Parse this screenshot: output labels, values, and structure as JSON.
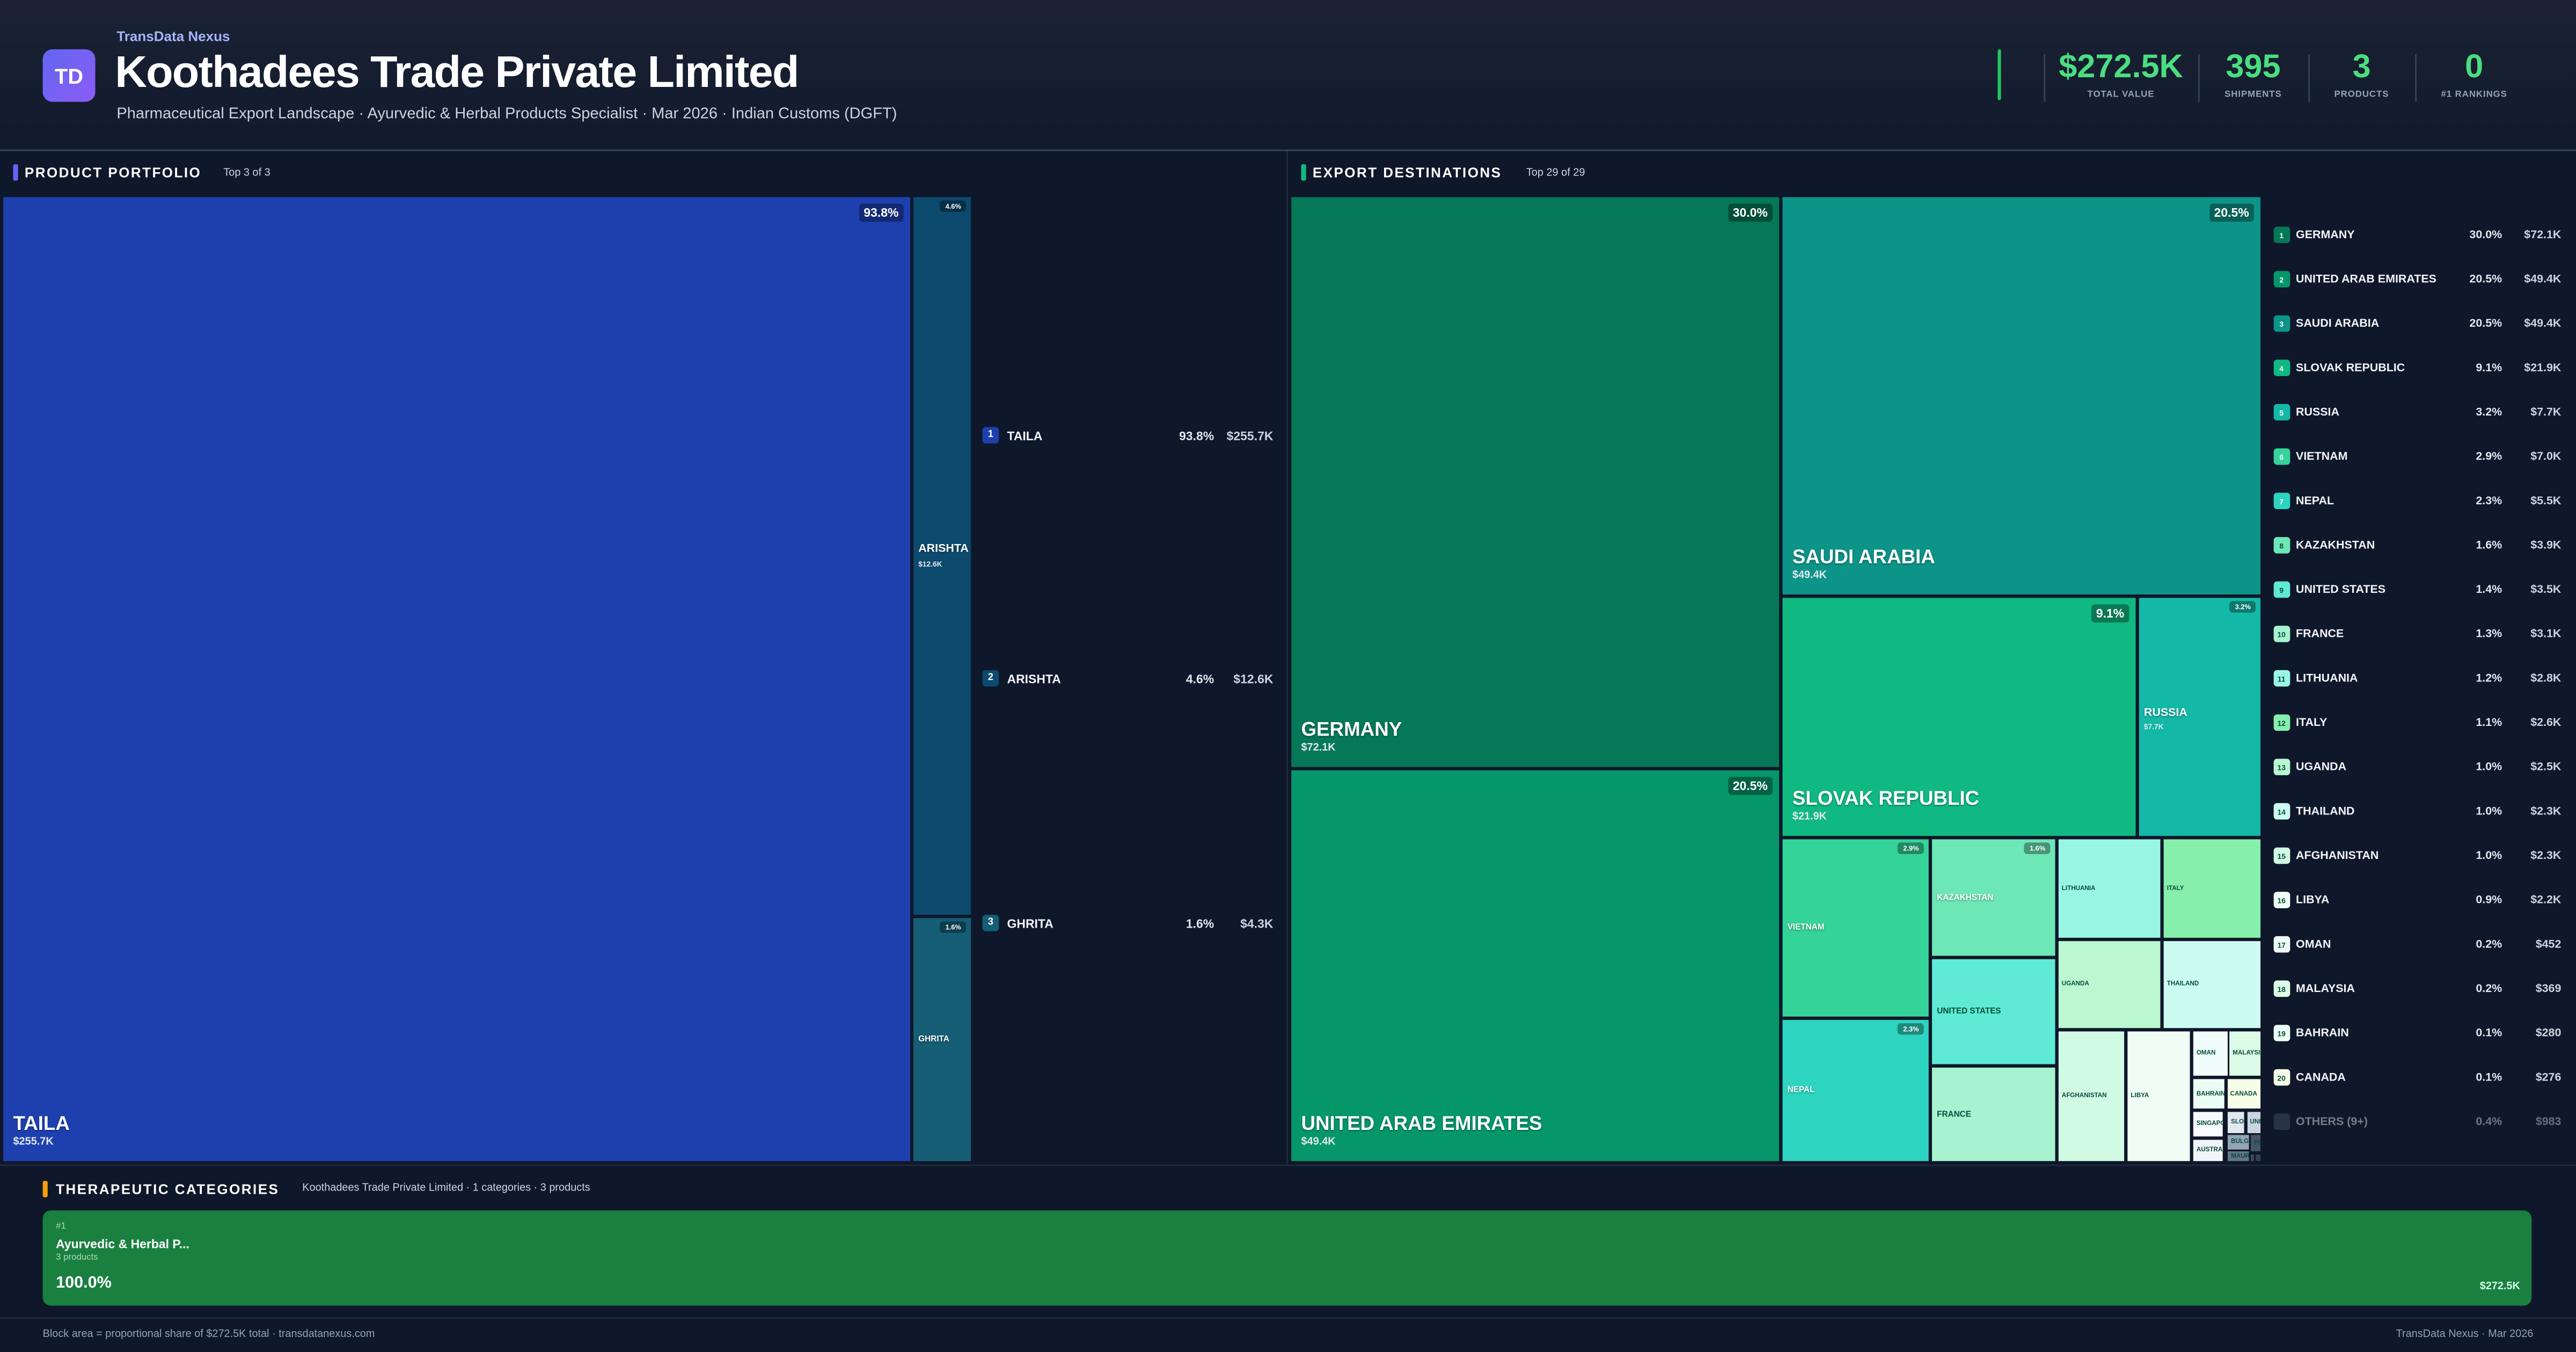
{
  "header": {
    "logo_text": "TD",
    "brand": "TransData Nexus",
    "title": "Koothadees Trade Private Limited",
    "subtitle": "Pharmaceutical Export Landscape · Ayurvedic & Herbal Products Specialist · Mar 2026 · Indian Customs (DGFT)",
    "stats": [
      {
        "value": "$272.5K",
        "label": "TOTAL VALUE"
      },
      {
        "value": "395",
        "label": "SHIPMENTS"
      },
      {
        "value": "3",
        "label": "PRODUCTS"
      },
      {
        "value": "0",
        "label": "#1 RANKINGS"
      }
    ],
    "accent_color": "#4ade80"
  },
  "products": {
    "title": "PRODUCT PORTFOLIO",
    "subtitle": "Top 3 of 3",
    "accent_color": "#6366f1"
  },
  "destinations": {
    "title": "EXPORT DESTINATIONS",
    "subtitle": "Top 29 of 29",
    "accent_color": "#10b981"
  },
  "categories": {
    "title": "THERAPEUTIC CATEGORIES",
    "subtitle": "Koothadees Trade Private Limited · 1 categories · 3 products",
    "accent_color": "#f59e0b",
    "items": [
      {
        "rank": "#1",
        "name": "Ayurvedic & Herbal P...",
        "count": "3 products",
        "share": "100.0%",
        "value": "$272.5K",
        "color": "#1a8040"
      }
    ]
  },
  "footer": {
    "left": "Block area = proportional share of $272.5K total · transdatanexus.com",
    "right": "TransData Nexus · Mar 2026"
  },
  "chart_data": [
    {
      "type": "treemap",
      "title": "PRODUCT PORTFOLIO",
      "items": [
        {
          "rank": "1",
          "name": "TAILA",
          "share": "93.8%",
          "value": "$255.7K",
          "color": "#1e40af"
        },
        {
          "rank": "2",
          "name": "ARISHTA",
          "share": "4.6%",
          "value": "$12.6K",
          "color": "#0c4a6e"
        },
        {
          "rank": "3",
          "name": "GHRITA",
          "share": "1.6%",
          "value": "$4.3K",
          "color": "#155e75"
        }
      ]
    },
    {
      "type": "treemap",
      "title": "EXPORT DESTINATIONS",
      "items": [
        {
          "rank": "1",
          "name": "GERMANY",
          "share": "30.0%",
          "value": "$72.1K",
          "color": "#047857"
        },
        {
          "rank": "2",
          "name": "UNITED ARAB EMIRATES",
          "share": "20.5%",
          "value": "$49.4K",
          "color": "#059669"
        },
        {
          "rank": "3",
          "name": "SAUDI ARABIA",
          "share": "20.5%",
          "value": "$49.4K",
          "color": "#0d9488"
        },
        {
          "rank": "4",
          "name": "SLOVAK REPUBLIC",
          "share": "9.1%",
          "value": "$21.9K",
          "color": "#10b981"
        },
        {
          "rank": "5",
          "name": "RUSSIA",
          "share": "3.2%",
          "value": "$7.7K",
          "color": "#14b8a6"
        },
        {
          "rank": "6",
          "name": "VIETNAM",
          "share": "2.9%",
          "value": "$7.0K",
          "color": "#34d399"
        },
        {
          "rank": "7",
          "name": "NEPAL",
          "share": "2.3%",
          "value": "$5.5K",
          "color": "#2dd4bf"
        },
        {
          "rank": "8",
          "name": "KAZAKHSTAN",
          "share": "1.6%",
          "value": "$3.9K",
          "color": "#6ee7b7"
        },
        {
          "rank": "9",
          "name": "UNITED STATES",
          "share": "1.4%",
          "value": "$3.5K",
          "color": "#5eead4"
        },
        {
          "rank": "10",
          "name": "FRANCE",
          "share": "1.3%",
          "value": "$3.1K",
          "color": "#a7f3d0"
        },
        {
          "rank": "11",
          "name": "LITHUANIA",
          "share": "1.2%",
          "value": "$2.8K",
          "color": "#99f6e4"
        },
        {
          "rank": "12",
          "name": "ITALY",
          "share": "1.1%",
          "value": "$2.6K",
          "color": "#86efac"
        },
        {
          "rank": "13",
          "name": "UGANDA",
          "share": "1.0%",
          "value": "$2.5K",
          "color": "#bbf7d0"
        },
        {
          "rank": "14",
          "name": "THAILAND",
          "share": "1.0%",
          "value": "$2.3K",
          "color": "#ccfbf1"
        },
        {
          "rank": "15",
          "name": "AFGHANISTAN",
          "share": "1.0%",
          "value": "$2.3K",
          "color": "#d1fae5"
        },
        {
          "rank": "16",
          "name": "LIBYA",
          "share": "0.9%",
          "value": "$2.2K",
          "color": "#f0fdf4"
        },
        {
          "rank": "17",
          "name": "OMAN",
          "share": "0.2%",
          "value": "$452",
          "color": "#f0fdfa"
        },
        {
          "rank": "18",
          "name": "MALAYSIA",
          "share": "0.2%",
          "value": "$369",
          "color": "#dcfce7"
        },
        {
          "rank": "19",
          "name": "BAHRAIN",
          "share": "0.1%",
          "value": "$280",
          "color": "#ecfdf5"
        },
        {
          "rank": "20",
          "name": "CANADA",
          "share": "0.1%",
          "value": "$276",
          "color": "#f7fee7"
        }
      ],
      "small_cells": [
        {
          "name": "SINGAPORE",
          "color": "#f8fafc"
        },
        {
          "name": "AUSTRALIA",
          "color": "#f1f5f9"
        },
        {
          "name": "SLOVE",
          "color": "#e2e8f0"
        },
        {
          "name": "UNIT",
          "color": "#cbd5e1"
        },
        {
          "name": "BULGAR",
          "color": "#94a3b8"
        },
        {
          "name": "MAURIT",
          "color": "#64748b"
        },
        {
          "name": "PO",
          "color": "#475569"
        },
        {
          "name": "",
          "color": "#3b4a5e"
        },
        {
          "name": "",
          "color": "#334155"
        }
      ],
      "others": {
        "name": "OTHERS (9+)",
        "share": "0.4%",
        "value": "$983",
        "color": "#475569"
      }
    }
  ]
}
